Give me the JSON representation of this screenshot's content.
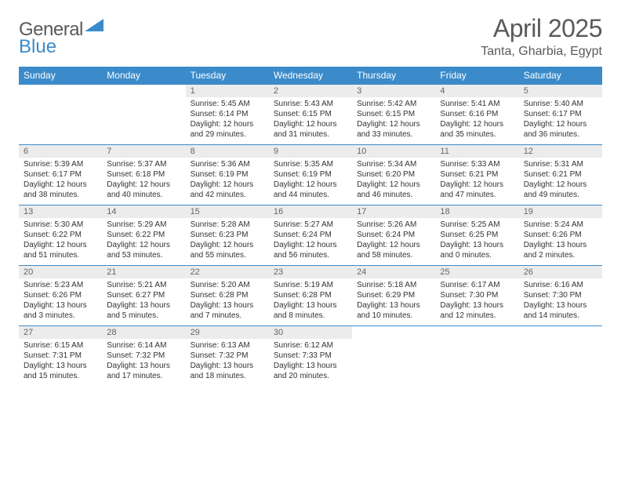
{
  "brand": {
    "name_part1": "General",
    "name_part2": "Blue",
    "logo_color": "#3b8bca"
  },
  "header": {
    "title": "April 2025",
    "location": "Tanta, Gharbia, Egypt"
  },
  "colors": {
    "header_bg": "#3b8bca",
    "header_text": "#ffffff",
    "daynum_bg": "#ececec",
    "daynum_text": "#666666",
    "body_text": "#333333",
    "rule": "#3b8bca"
  },
  "fonts": {
    "title_size": 32,
    "location_size": 16,
    "dayhead_size": 12,
    "daynum_size": 11,
    "data_size": 10
  },
  "day_names": [
    "Sunday",
    "Monday",
    "Tuesday",
    "Wednesday",
    "Thursday",
    "Friday",
    "Saturday"
  ],
  "weeks": [
    [
      null,
      null,
      {
        "n": "1",
        "sunrise": "Sunrise: 5:45 AM",
        "sunset": "Sunset: 6:14 PM",
        "d1": "Daylight: 12 hours",
        "d2": "and 29 minutes."
      },
      {
        "n": "2",
        "sunrise": "Sunrise: 5:43 AM",
        "sunset": "Sunset: 6:15 PM",
        "d1": "Daylight: 12 hours",
        "d2": "and 31 minutes."
      },
      {
        "n": "3",
        "sunrise": "Sunrise: 5:42 AM",
        "sunset": "Sunset: 6:15 PM",
        "d1": "Daylight: 12 hours",
        "d2": "and 33 minutes."
      },
      {
        "n": "4",
        "sunrise": "Sunrise: 5:41 AM",
        "sunset": "Sunset: 6:16 PM",
        "d1": "Daylight: 12 hours",
        "d2": "and 35 minutes."
      },
      {
        "n": "5",
        "sunrise": "Sunrise: 5:40 AM",
        "sunset": "Sunset: 6:17 PM",
        "d1": "Daylight: 12 hours",
        "d2": "and 36 minutes."
      }
    ],
    [
      {
        "n": "6",
        "sunrise": "Sunrise: 5:39 AM",
        "sunset": "Sunset: 6:17 PM",
        "d1": "Daylight: 12 hours",
        "d2": "and 38 minutes."
      },
      {
        "n": "7",
        "sunrise": "Sunrise: 5:37 AM",
        "sunset": "Sunset: 6:18 PM",
        "d1": "Daylight: 12 hours",
        "d2": "and 40 minutes."
      },
      {
        "n": "8",
        "sunrise": "Sunrise: 5:36 AM",
        "sunset": "Sunset: 6:19 PM",
        "d1": "Daylight: 12 hours",
        "d2": "and 42 minutes."
      },
      {
        "n": "9",
        "sunrise": "Sunrise: 5:35 AM",
        "sunset": "Sunset: 6:19 PM",
        "d1": "Daylight: 12 hours",
        "d2": "and 44 minutes."
      },
      {
        "n": "10",
        "sunrise": "Sunrise: 5:34 AM",
        "sunset": "Sunset: 6:20 PM",
        "d1": "Daylight: 12 hours",
        "d2": "and 46 minutes."
      },
      {
        "n": "11",
        "sunrise": "Sunrise: 5:33 AM",
        "sunset": "Sunset: 6:21 PM",
        "d1": "Daylight: 12 hours",
        "d2": "and 47 minutes."
      },
      {
        "n": "12",
        "sunrise": "Sunrise: 5:31 AM",
        "sunset": "Sunset: 6:21 PM",
        "d1": "Daylight: 12 hours",
        "d2": "and 49 minutes."
      }
    ],
    [
      {
        "n": "13",
        "sunrise": "Sunrise: 5:30 AM",
        "sunset": "Sunset: 6:22 PM",
        "d1": "Daylight: 12 hours",
        "d2": "and 51 minutes."
      },
      {
        "n": "14",
        "sunrise": "Sunrise: 5:29 AM",
        "sunset": "Sunset: 6:22 PM",
        "d1": "Daylight: 12 hours",
        "d2": "and 53 minutes."
      },
      {
        "n": "15",
        "sunrise": "Sunrise: 5:28 AM",
        "sunset": "Sunset: 6:23 PM",
        "d1": "Daylight: 12 hours",
        "d2": "and 55 minutes."
      },
      {
        "n": "16",
        "sunrise": "Sunrise: 5:27 AM",
        "sunset": "Sunset: 6:24 PM",
        "d1": "Daylight: 12 hours",
        "d2": "and 56 minutes."
      },
      {
        "n": "17",
        "sunrise": "Sunrise: 5:26 AM",
        "sunset": "Sunset: 6:24 PM",
        "d1": "Daylight: 12 hours",
        "d2": "and 58 minutes."
      },
      {
        "n": "18",
        "sunrise": "Sunrise: 5:25 AM",
        "sunset": "Sunset: 6:25 PM",
        "d1": "Daylight: 13 hours",
        "d2": "and 0 minutes."
      },
      {
        "n": "19",
        "sunrise": "Sunrise: 5:24 AM",
        "sunset": "Sunset: 6:26 PM",
        "d1": "Daylight: 13 hours",
        "d2": "and 2 minutes."
      }
    ],
    [
      {
        "n": "20",
        "sunrise": "Sunrise: 5:23 AM",
        "sunset": "Sunset: 6:26 PM",
        "d1": "Daylight: 13 hours",
        "d2": "and 3 minutes."
      },
      {
        "n": "21",
        "sunrise": "Sunrise: 5:21 AM",
        "sunset": "Sunset: 6:27 PM",
        "d1": "Daylight: 13 hours",
        "d2": "and 5 minutes."
      },
      {
        "n": "22",
        "sunrise": "Sunrise: 5:20 AM",
        "sunset": "Sunset: 6:28 PM",
        "d1": "Daylight: 13 hours",
        "d2": "and 7 minutes."
      },
      {
        "n": "23",
        "sunrise": "Sunrise: 5:19 AM",
        "sunset": "Sunset: 6:28 PM",
        "d1": "Daylight: 13 hours",
        "d2": "and 8 minutes."
      },
      {
        "n": "24",
        "sunrise": "Sunrise: 5:18 AM",
        "sunset": "Sunset: 6:29 PM",
        "d1": "Daylight: 13 hours",
        "d2": "and 10 minutes."
      },
      {
        "n": "25",
        "sunrise": "Sunrise: 6:17 AM",
        "sunset": "Sunset: 7:30 PM",
        "d1": "Daylight: 13 hours",
        "d2": "and 12 minutes."
      },
      {
        "n": "26",
        "sunrise": "Sunrise: 6:16 AM",
        "sunset": "Sunset: 7:30 PM",
        "d1": "Daylight: 13 hours",
        "d2": "and 14 minutes."
      }
    ],
    [
      {
        "n": "27",
        "sunrise": "Sunrise: 6:15 AM",
        "sunset": "Sunset: 7:31 PM",
        "d1": "Daylight: 13 hours",
        "d2": "and 15 minutes."
      },
      {
        "n": "28",
        "sunrise": "Sunrise: 6:14 AM",
        "sunset": "Sunset: 7:32 PM",
        "d1": "Daylight: 13 hours",
        "d2": "and 17 minutes."
      },
      {
        "n": "29",
        "sunrise": "Sunrise: 6:13 AM",
        "sunset": "Sunset: 7:32 PM",
        "d1": "Daylight: 13 hours",
        "d2": "and 18 minutes."
      },
      {
        "n": "30",
        "sunrise": "Sunrise: 6:12 AM",
        "sunset": "Sunset: 7:33 PM",
        "d1": "Daylight: 13 hours",
        "d2": "and 20 minutes."
      },
      null,
      null,
      null
    ]
  ]
}
